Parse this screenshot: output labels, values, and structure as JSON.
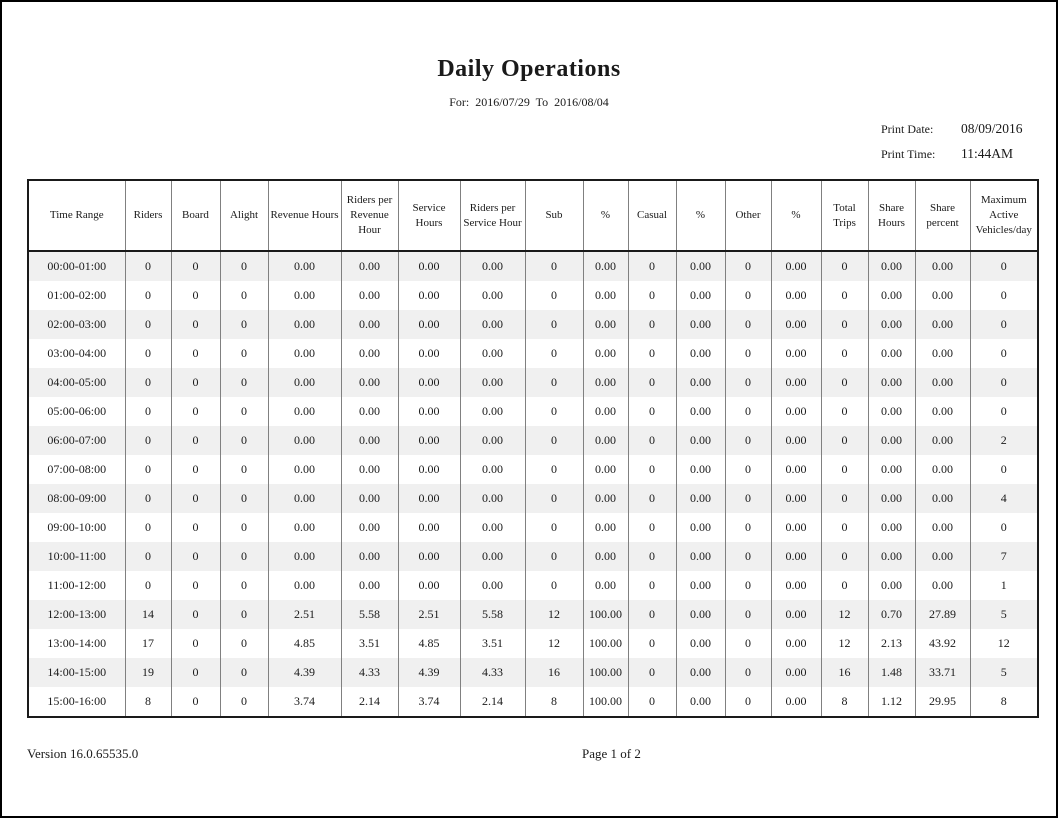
{
  "header": {
    "title": "Daily Operations",
    "subtitle": "For:  2016/07/29  To  2016/08/04",
    "print_date_label": "Print Date:",
    "print_date_value": "08/09/2016",
    "print_time_label": "Print Time:",
    "print_time_value": "11:44AM"
  },
  "table": {
    "columns": [
      "Time Range",
      "Riders",
      "Board",
      "Alight",
      "Revenue Hours",
      "Riders per Revenue Hour",
      "Service Hours",
      "Riders per Service Hour",
      "Sub",
      "%",
      "Casual",
      "%",
      "Other",
      "%",
      "Total Trips",
      "Share Hours",
      "Share percent",
      "Maximum Active Vehicles/day"
    ],
    "rows": [
      [
        "00:00-01:00",
        "0",
        "0",
        "0",
        "0.00",
        "0.00",
        "0.00",
        "0.00",
        "0",
        "0.00",
        "0",
        "0.00",
        "0",
        "0.00",
        "0",
        "0.00",
        "0.00",
        "0"
      ],
      [
        "01:00-02:00",
        "0",
        "0",
        "0",
        "0.00",
        "0.00",
        "0.00",
        "0.00",
        "0",
        "0.00",
        "0",
        "0.00",
        "0",
        "0.00",
        "0",
        "0.00",
        "0.00",
        "0"
      ],
      [
        "02:00-03:00",
        "0",
        "0",
        "0",
        "0.00",
        "0.00",
        "0.00",
        "0.00",
        "0",
        "0.00",
        "0",
        "0.00",
        "0",
        "0.00",
        "0",
        "0.00",
        "0.00",
        "0"
      ],
      [
        "03:00-04:00",
        "0",
        "0",
        "0",
        "0.00",
        "0.00",
        "0.00",
        "0.00",
        "0",
        "0.00",
        "0",
        "0.00",
        "0",
        "0.00",
        "0",
        "0.00",
        "0.00",
        "0"
      ],
      [
        "04:00-05:00",
        "0",
        "0",
        "0",
        "0.00",
        "0.00",
        "0.00",
        "0.00",
        "0",
        "0.00",
        "0",
        "0.00",
        "0",
        "0.00",
        "0",
        "0.00",
        "0.00",
        "0"
      ],
      [
        "05:00-06:00",
        "0",
        "0",
        "0",
        "0.00",
        "0.00",
        "0.00",
        "0.00",
        "0",
        "0.00",
        "0",
        "0.00",
        "0",
        "0.00",
        "0",
        "0.00",
        "0.00",
        "0"
      ],
      [
        "06:00-07:00",
        "0",
        "0",
        "0",
        "0.00",
        "0.00",
        "0.00",
        "0.00",
        "0",
        "0.00",
        "0",
        "0.00",
        "0",
        "0.00",
        "0",
        "0.00",
        "0.00",
        "2"
      ],
      [
        "07:00-08:00",
        "0",
        "0",
        "0",
        "0.00",
        "0.00",
        "0.00",
        "0.00",
        "0",
        "0.00",
        "0",
        "0.00",
        "0",
        "0.00",
        "0",
        "0.00",
        "0.00",
        "0"
      ],
      [
        "08:00-09:00",
        "0",
        "0",
        "0",
        "0.00",
        "0.00",
        "0.00",
        "0.00",
        "0",
        "0.00",
        "0",
        "0.00",
        "0",
        "0.00",
        "0",
        "0.00",
        "0.00",
        "4"
      ],
      [
        "09:00-10:00",
        "0",
        "0",
        "0",
        "0.00",
        "0.00",
        "0.00",
        "0.00",
        "0",
        "0.00",
        "0",
        "0.00",
        "0",
        "0.00",
        "0",
        "0.00",
        "0.00",
        "0"
      ],
      [
        "10:00-11:00",
        "0",
        "0",
        "0",
        "0.00",
        "0.00",
        "0.00",
        "0.00",
        "0",
        "0.00",
        "0",
        "0.00",
        "0",
        "0.00",
        "0",
        "0.00",
        "0.00",
        "7"
      ],
      [
        "11:00-12:00",
        "0",
        "0",
        "0",
        "0.00",
        "0.00",
        "0.00",
        "0.00",
        "0",
        "0.00",
        "0",
        "0.00",
        "0",
        "0.00",
        "0",
        "0.00",
        "0.00",
        "1"
      ],
      [
        "12:00-13:00",
        "14",
        "0",
        "0",
        "2.51",
        "5.58",
        "2.51",
        "5.58",
        "12",
        "100.00",
        "0",
        "0.00",
        "0",
        "0.00",
        "12",
        "0.70",
        "27.89",
        "5"
      ],
      [
        "13:00-14:00",
        "17",
        "0",
        "0",
        "4.85",
        "3.51",
        "4.85",
        "3.51",
        "12",
        "100.00",
        "0",
        "0.00",
        "0",
        "0.00",
        "12",
        "2.13",
        "43.92",
        "12"
      ],
      [
        "14:00-15:00",
        "19",
        "0",
        "0",
        "4.39",
        "4.33",
        "4.39",
        "4.33",
        "16",
        "100.00",
        "0",
        "0.00",
        "0",
        "0.00",
        "16",
        "1.48",
        "33.71",
        "5"
      ],
      [
        "15:00-16:00",
        "8",
        "0",
        "0",
        "3.74",
        "2.14",
        "3.74",
        "2.14",
        "8",
        "100.00",
        "0",
        "0.00",
        "0",
        "0.00",
        "8",
        "1.12",
        "29.95",
        "8"
      ]
    ]
  },
  "footer": {
    "version": "Version 16.0.65535.0",
    "page": "Page 1 of 2"
  },
  "colors": {
    "row_stripe": "#f0f0f0",
    "grid_line": "#808080",
    "table_border": "#1a1a1a"
  }
}
